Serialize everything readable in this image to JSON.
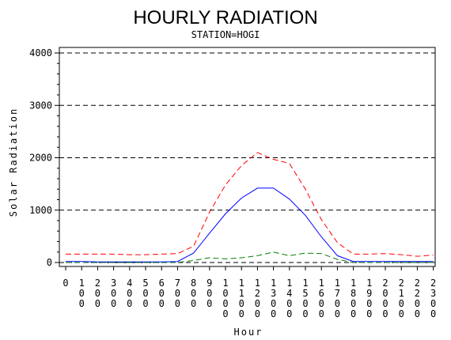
{
  "chart_data": {
    "type": "line",
    "title": "HOURLY RADIATION",
    "subtitle": "STATION=HOGI",
    "xlabel": "Hour",
    "ylabel": "Solar Radiation",
    "ylim": [
      0,
      4000
    ],
    "yticks": [
      0,
      1000,
      2000,
      3000,
      4000
    ],
    "ytick_labels": [
      "0",
      "1000",
      "2000",
      "3000",
      "4000"
    ],
    "grid": "horizontal dashed",
    "x": [
      0,
      100,
      200,
      300,
      400,
      500,
      600,
      700,
      800,
      900,
      1000,
      1100,
      1200,
      1300,
      1400,
      1500,
      1600,
      1700,
      1800,
      1900,
      2000,
      2100,
      2200,
      2300
    ],
    "xtick_labels": [
      "0",
      "100",
      "200",
      "300",
      "400",
      "500",
      "600",
      "700",
      "800",
      "900",
      "1000",
      "1100",
      "1200",
      "1300",
      "1400",
      "1500",
      "1600",
      "1700",
      "1800",
      "1900",
      "2000",
      "2100",
      "2200",
      "2300"
    ],
    "series": [
      {
        "color": "#ff0000",
        "dash": "dashed",
        "values": [
          160,
          160,
          160,
          160,
          150,
          150,
          160,
          170,
          310,
          960,
          1480,
          1850,
          2100,
          1970,
          1890,
          1400,
          820,
          380,
          160,
          160,
          170,
          150,
          120,
          140
        ]
      },
      {
        "color": "#0000ff",
        "dash": "solid",
        "values": [
          20,
          20,
          10,
          10,
          10,
          10,
          10,
          20,
          180,
          560,
          930,
          1230,
          1420,
          1420,
          1210,
          900,
          490,
          130,
          20,
          20,
          20,
          20,
          20,
          20
        ]
      },
      {
        "color": "#008000",
        "dash": "dashed",
        "values": [
          0,
          0,
          0,
          0,
          0,
          0,
          0,
          0,
          40,
          90,
          70,
          90,
          130,
          200,
          130,
          180,
          170,
          60,
          0,
          0,
          0,
          0,
          0,
          0
        ]
      }
    ]
  }
}
